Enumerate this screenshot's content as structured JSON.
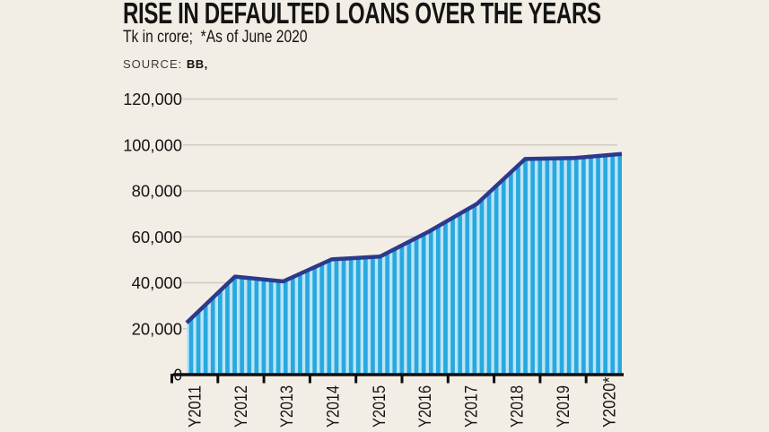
{
  "header": {
    "title": "RISE IN DEFAULTED LOANS OVER THE YEARS",
    "subtitle": "Tk in crore;  *As of June 2020",
    "source_label": "SOURCE:",
    "source_value": "BB,"
  },
  "chart_data": {
    "type": "area",
    "title": "RISE IN DEFAULTED LOANS OVER THE YEARS",
    "unit": "Tk in crore",
    "note": "*As of June 2020",
    "source": "BB",
    "categories": [
      "Y2011",
      "Y2012",
      "Y2013",
      "Y2014",
      "Y2015",
      "Y2016",
      "Y2017",
      "Y2018",
      "Y2019",
      "Y2020*"
    ],
    "values": [
      22600,
      42700,
      40600,
      50200,
      51400,
      62200,
      74300,
      93900,
      94300,
      96100
    ],
    "ylim": [
      0,
      120000
    ],
    "ytick_step": 20000,
    "ytick_labels": [
      "0",
      "20,000",
      "40,000",
      "60,000",
      "80,000",
      "100,000",
      "120,000"
    ],
    "grid": true,
    "legend": false,
    "colors": {
      "background": "#f2eee5",
      "area_stripe_dark": "#29a8e0",
      "area_stripe_light": "#bce6f7",
      "line": "#2b3a8c",
      "axis": "#0e0e0e",
      "grid": "#cfcbc1",
      "text": "#141414"
    }
  }
}
